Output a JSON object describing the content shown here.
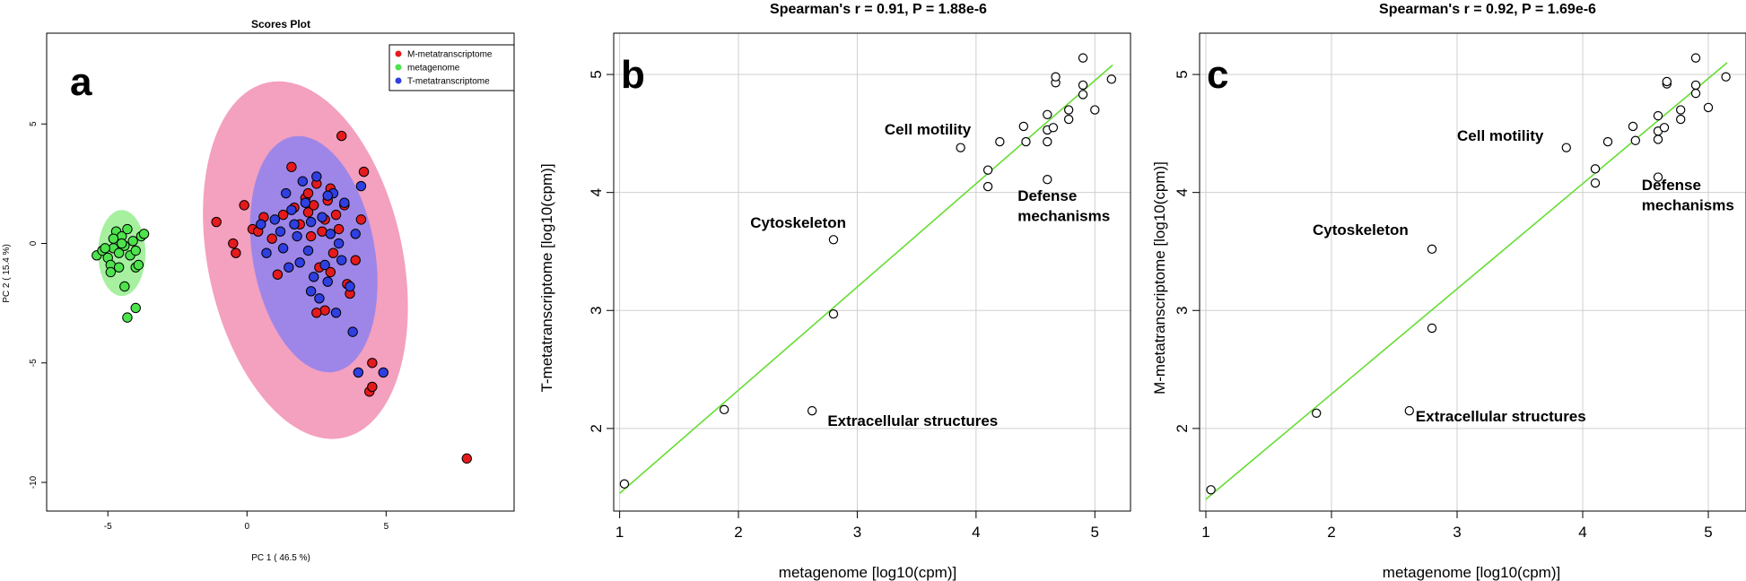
{
  "figure": {
    "panel_labels": [
      "a",
      "b",
      "c"
    ]
  },
  "chart_data": [
    {
      "type": "scatter",
      "panel": "a",
      "title": "Scores Plot",
      "xlabel": "PC 1 ( 46.5 %)",
      "ylabel": "PC 2 ( 15.4 %)",
      "xlim": [
        -7.2,
        9.6
      ],
      "ylim": [
        -11.2,
        8.8
      ],
      "xticks": [
        -5,
        0,
        5
      ],
      "yticks": [
        5,
        0,
        -5,
        -10
      ],
      "legend_position": "top-right",
      "legend": [
        {
          "label": "M-metatranscriptome",
          "color": "#e41a1c"
        },
        {
          "label": "metagenome",
          "color": "#4de34d"
        },
        {
          "label": "T-metatranscriptome",
          "color": "#2f3fe0"
        }
      ],
      "ellipses": [
        {
          "series": "M-metatranscriptome",
          "cx": 2.1,
          "cy": -0.7,
          "rx": 3.5,
          "ry": 7.6,
          "angle_deg": 12,
          "fill": "#f4a0bf"
        },
        {
          "series": "T-metatranscriptome",
          "cx": 2.4,
          "cy": -0.45,
          "rx": 2.2,
          "ry": 5.0,
          "angle_deg": 10,
          "fill": "#9e86e8"
        },
        {
          "series": "metagenome",
          "cx": -4.5,
          "cy": -0.4,
          "rx": 0.85,
          "ry": 1.8,
          "angle_deg": 0,
          "fill": "#a6f0a0"
        }
      ],
      "series": [
        {
          "name": "metagenome",
          "color": "#4de34d",
          "points": [
            [
              -5.4,
              -0.5
            ],
            [
              -5.2,
              -0.3
            ],
            [
              -5.0,
              -0.6
            ],
            [
              -4.8,
              -0.2
            ],
            [
              -4.6,
              -0.4
            ],
            [
              -4.4,
              -0.1
            ],
            [
              -4.2,
              -0.5
            ],
            [
              -4.0,
              -0.3
            ],
            [
              -4.7,
              0.5
            ],
            [
              -4.5,
              0.3
            ],
            [
              -4.3,
              0.6
            ],
            [
              -4.1,
              0.1
            ],
            [
              -3.8,
              0.3
            ],
            [
              -3.7,
              0.4
            ],
            [
              -4.9,
              -0.9
            ],
            [
              -4.6,
              -1.0
            ],
            [
              -4.9,
              -1.2
            ],
            [
              -4.0,
              -1.0
            ],
            [
              -3.9,
              -0.9
            ],
            [
              -4.4,
              -1.8
            ],
            [
              -4.0,
              -2.7
            ],
            [
              -4.3,
              -3.1
            ],
            [
              -5.1,
              -0.2
            ],
            [
              -4.8,
              0.2
            ],
            [
              -4.5,
              0.0
            ]
          ]
        },
        {
          "name": "M-metatranscriptome",
          "color": "#e41a1c",
          "points": [
            [
              -1.1,
              0.9
            ],
            [
              -0.5,
              0.0
            ],
            [
              -0.4,
              -0.4
            ],
            [
              -0.1,
              1.6
            ],
            [
              0.2,
              0.6
            ],
            [
              0.4,
              0.5
            ],
            [
              0.6,
              1.1
            ],
            [
              0.9,
              0.2
            ],
            [
              1.1,
              -1.3
            ],
            [
              1.3,
              1.2
            ],
            [
              1.6,
              3.2
            ],
            [
              1.7,
              1.5
            ],
            [
              1.9,
              0.8
            ],
            [
              2.1,
              1.9
            ],
            [
              2.2,
              1.3
            ],
            [
              2.3,
              0.3
            ],
            [
              2.4,
              1.6
            ],
            [
              2.5,
              2.5
            ],
            [
              2.6,
              -1.0
            ],
            [
              2.7,
              0.5
            ],
            [
              2.8,
              -2.8
            ],
            [
              2.9,
              1.8
            ],
            [
              3.0,
              2.3
            ],
            [
              3.1,
              -0.4
            ],
            [
              3.2,
              1.2
            ],
            [
              3.3,
              0.6
            ],
            [
              3.4,
              4.5
            ],
            [
              3.5,
              1.6
            ],
            [
              3.6,
              -1.7
            ],
            [
              3.7,
              -2.1
            ],
            [
              3.9,
              -0.7
            ],
            [
              4.1,
              1.0
            ],
            [
              4.2,
              3.0
            ],
            [
              4.4,
              -6.2
            ],
            [
              4.5,
              -5.0
            ],
            [
              4.5,
              -6.0
            ],
            [
              7.9,
              -9.0
            ],
            [
              2.5,
              -2.9
            ],
            [
              2.8,
              1.0
            ],
            [
              3.0,
              -1.2
            ],
            [
              2.2,
              2.1
            ]
          ]
        },
        {
          "name": "T-metatranscriptome",
          "color": "#2f3fe0",
          "points": [
            [
              0.5,
              0.8
            ],
            [
              0.7,
              -0.4
            ],
            [
              1.0,
              1.0
            ],
            [
              1.2,
              0.5
            ],
            [
              1.4,
              2.1
            ],
            [
              1.5,
              -1.0
            ],
            [
              1.6,
              1.4
            ],
            [
              1.8,
              0.3
            ],
            [
              1.9,
              -0.8
            ],
            [
              2.0,
              2.6
            ],
            [
              2.1,
              1.7
            ],
            [
              2.2,
              -0.3
            ],
            [
              2.3,
              0.9
            ],
            [
              2.4,
              -1.4
            ],
            [
              2.5,
              2.8
            ],
            [
              2.6,
              -2.3
            ],
            [
              2.7,
              1.1
            ],
            [
              2.8,
              -0.9
            ],
            [
              2.9,
              -1.6
            ],
            [
              3.0,
              0.4
            ],
            [
              3.1,
              2.1
            ],
            [
              3.2,
              -2.9
            ],
            [
              3.3,
              0.0
            ],
            [
              3.4,
              -0.7
            ],
            [
              3.5,
              1.7
            ],
            [
              3.7,
              -1.8
            ],
            [
              3.8,
              -3.7
            ],
            [
              3.9,
              0.4
            ],
            [
              4.0,
              -5.4
            ],
            [
              4.1,
              2.4
            ],
            [
              4.9,
              -5.4
            ],
            [
              1.7,
              0.8
            ],
            [
              2.3,
              -2.0
            ],
            [
              1.3,
              -0.2
            ],
            [
              2.9,
              2.0
            ]
          ]
        }
      ]
    },
    {
      "type": "scatter",
      "panel": "b",
      "title": "Spearman's r = 0.91, P = 1.88e-6",
      "xlabel": "metagenome [log10(cpm)]",
      "ylabel": "T-metatranscriptome [log10(cpm)]",
      "xlim": [
        0.95,
        5.3
      ],
      "ylim": [
        1.3,
        5.35
      ],
      "xticks": [
        1,
        2,
        3,
        4,
        5
      ],
      "yticks": [
        2,
        3,
        4,
        5
      ],
      "grid": true,
      "fit_line": {
        "x": [
          1.0,
          5.15
        ],
        "y": [
          1.45,
          5.08
        ],
        "color": "#66dd33"
      },
      "points": [
        [
          1.04,
          1.53
        ],
        [
          1.88,
          2.16
        ],
        [
          2.62,
          2.15
        ],
        [
          2.8,
          2.97
        ],
        [
          2.8,
          3.6
        ],
        [
          3.87,
          4.38
        ],
        [
          4.1,
          4.19
        ],
        [
          4.1,
          4.05
        ],
        [
          4.2,
          4.43
        ],
        [
          4.4,
          4.56
        ],
        [
          4.42,
          4.43
        ],
        [
          4.6,
          4.53
        ],
        [
          4.6,
          4.43
        ],
        [
          4.6,
          4.66
        ],
        [
          4.6,
          4.11
        ],
        [
          4.65,
          4.55
        ],
        [
          4.67,
          4.93
        ],
        [
          4.67,
          4.98
        ],
        [
          4.78,
          4.62
        ],
        [
          4.78,
          4.7
        ],
        [
          4.9,
          4.83
        ],
        [
          4.9,
          4.91
        ],
        [
          4.9,
          5.14
        ],
        [
          5.0,
          4.7
        ],
        [
          5.14,
          4.96
        ]
      ],
      "annotations": [
        {
          "text": "Cell motility",
          "x": 3.23,
          "y": 4.49
        },
        {
          "text": "Cytoskeleton",
          "x": 2.1,
          "y": 3.7
        },
        {
          "text": "Defense",
          "x": 4.35,
          "y": 3.93
        },
        {
          "text": "mechanisms",
          "x": 4.35,
          "y": 3.76
        },
        {
          "text": "Extracellular structures",
          "x": 2.75,
          "y": 2.02
        }
      ]
    },
    {
      "type": "scatter",
      "panel": "c",
      "title": "Spearman's r = 0.92, P = 1.69e-6",
      "xlabel": "metagenome [log10(cpm)]",
      "ylabel": "M-metatranscriptome [log10(cpm)]",
      "xlim": [
        0.95,
        5.3
      ],
      "ylim": [
        1.3,
        5.35
      ],
      "xticks": [
        1,
        2,
        3,
        4,
        5
      ],
      "yticks": [
        2,
        3,
        4,
        5
      ],
      "grid": true,
      "fit_line": {
        "x": [
          1.0,
          5.15
        ],
        "y": [
          1.4,
          5.1
        ],
        "color": "#66dd33"
      },
      "points": [
        [
          1.04,
          1.48
        ],
        [
          1.88,
          2.13
        ],
        [
          2.62,
          2.15
        ],
        [
          2.8,
          2.85
        ],
        [
          2.8,
          3.52
        ],
        [
          3.87,
          4.38
        ],
        [
          4.1,
          4.2
        ],
        [
          4.1,
          4.08
        ],
        [
          4.2,
          4.43
        ],
        [
          4.4,
          4.56
        ],
        [
          4.42,
          4.44
        ],
        [
          4.6,
          4.52
        ],
        [
          4.6,
          4.45
        ],
        [
          4.6,
          4.65
        ],
        [
          4.6,
          4.13
        ],
        [
          4.65,
          4.55
        ],
        [
          4.67,
          4.92
        ],
        [
          4.67,
          4.94
        ],
        [
          4.78,
          4.62
        ],
        [
          4.78,
          4.7
        ],
        [
          4.9,
          4.84
        ],
        [
          4.9,
          4.91
        ],
        [
          4.9,
          5.14
        ],
        [
          5.0,
          4.72
        ],
        [
          5.14,
          4.98
        ]
      ],
      "annotations": [
        {
          "text": "Cell motility",
          "x": 3.0,
          "y": 4.44
        },
        {
          "text": "Cytoskeleton",
          "x": 1.85,
          "y": 3.64
        },
        {
          "text": "Defense",
          "x": 4.47,
          "y": 4.02
        },
        {
          "text": "mechanisms",
          "x": 4.47,
          "y": 3.85
        },
        {
          "text": "Extracellular structures",
          "x": 2.67,
          "y": 2.06
        }
      ]
    }
  ]
}
